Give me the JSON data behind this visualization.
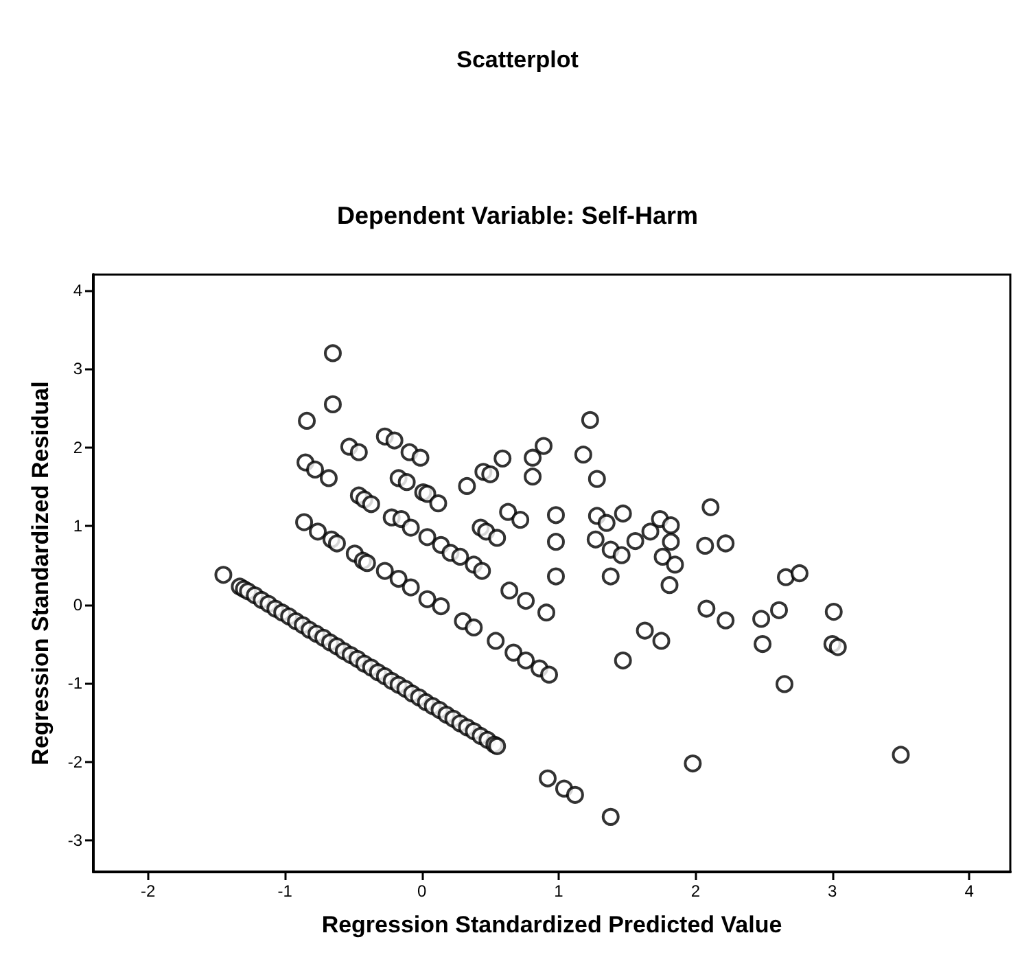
{
  "chart_data": {
    "type": "scatter",
    "title": "Scatterplot",
    "subtitle": "Dependent Variable: Self-Harm",
    "xlabel": "Regression Standardized Predicted Value",
    "ylabel": "Regression Standardized Residual",
    "xlim": [
      -2.4,
      4.3
    ],
    "xticks": [
      -2,
      -1,
      0,
      1,
      2,
      3,
      4
    ],
    "ylim": [
      -3.4,
      4.2
    ],
    "yticks": [
      -3,
      -2,
      -1,
      0,
      1,
      2,
      3,
      4
    ],
    "grid": false,
    "legend": false,
    "marker": "circle",
    "series": [
      {
        "color": "#000000",
        "x": [
          -1.45,
          -1.33,
          -1.3,
          -1.27,
          -1.22,
          -1.17,
          -1.12,
          -1.07,
          -1.02,
          -0.97,
          -0.92,
          -0.87,
          -0.82,
          -0.77,
          -0.72,
          -0.67,
          -0.62,
          -0.57,
          -0.52,
          -0.47,
          -0.42,
          -0.37,
          -0.32,
          -0.27,
          -0.22,
          -0.17,
          -0.12,
          -0.07,
          -0.02,
          0.03,
          0.08,
          0.13,
          0.18,
          0.23,
          0.28,
          0.33,
          0.38,
          0.43,
          0.48,
          0.53,
          0.55,
          -0.86,
          -0.76,
          -0.66,
          -0.62,
          -0.49,
          -0.43,
          -0.4,
          -0.27,
          -0.17,
          -0.08,
          0.04,
          0.14,
          0.3,
          0.38,
          0.54,
          0.67,
          0.76,
          0.86,
          0.93,
          -0.85,
          -0.78,
          -0.68,
          -0.46,
          -0.42,
          -0.37,
          -0.22,
          -0.15,
          -0.08,
          0.04,
          0.14,
          0.21,
          0.28,
          0.38,
          0.44,
          0.64,
          0.76,
          0.91,
          0.98,
          -0.27,
          -0.2,
          -0.09,
          -0.01,
          -0.17,
          -0.11,
          0.01,
          0.04,
          0.12,
          0.33,
          0.45,
          0.5,
          0.59,
          0.43,
          0.47,
          0.55,
          0.63,
          0.72,
          0.81,
          0.81,
          0.89,
          0.98,
          0.98,
          1.23,
          1.18,
          1.28,
          1.28,
          1.35,
          1.47,
          1.27,
          1.38,
          1.46,
          1.56,
          1.67,
          1.74,
          1.82,
          1.82,
          1.76,
          1.85,
          2.11,
          2.07,
          2.22,
          2.66,
          2.76,
          1.38,
          1.81,
          1.47,
          1.63,
          1.75,
          2.08,
          2.22,
          2.48,
          2.61,
          2.49,
          2.65,
          0.92,
          1.04,
          1.12,
          1.38,
          1.98,
          3.01,
          3.0,
          3.04,
          3.5,
          -0.65,
          -0.65,
          -0.84,
          -0.53,
          -0.46
        ],
        "values": [
          0.38,
          0.23,
          0.2,
          0.17,
          0.12,
          0.06,
          0.01,
          -0.05,
          -0.1,
          -0.15,
          -0.21,
          -0.26,
          -0.32,
          -0.37,
          -0.42,
          -0.48,
          -0.53,
          -0.59,
          -0.64,
          -0.69,
          -0.75,
          -0.8,
          -0.86,
          -0.91,
          -0.97,
          -1.02,
          -1.07,
          -1.13,
          -1.18,
          -1.24,
          -1.29,
          -1.34,
          -1.4,
          -1.45,
          -1.51,
          -1.56,
          -1.61,
          -1.67,
          -1.72,
          -1.78,
          -1.8,
          1.05,
          0.93,
          0.83,
          0.78,
          0.65,
          0.56,
          0.53,
          0.43,
          0.33,
          0.22,
          0.07,
          -0.02,
          -0.21,
          -0.29,
          -0.46,
          -0.61,
          -0.71,
          -0.81,
          -0.89,
          1.81,
          1.72,
          1.61,
          1.39,
          1.34,
          1.28,
          1.11,
          1.09,
          0.98,
          0.86,
          0.76,
          0.66,
          0.61,
          0.51,
          0.43,
          0.18,
          0.05,
          -0.1,
          0.36,
          2.14,
          2.09,
          1.94,
          1.87,
          1.61,
          1.56,
          1.43,
          1.41,
          1.29,
          1.51,
          1.69,
          1.66,
          1.86,
          0.98,
          0.93,
          0.85,
          1.18,
          1.08,
          1.63,
          1.87,
          2.02,
          1.14,
          0.8,
          2.35,
          1.91,
          1.6,
          1.13,
          1.04,
          1.16,
          0.83,
          0.7,
          0.63,
          0.81,
          0.93,
          1.09,
          1.01,
          0.8,
          0.61,
          0.51,
          1.24,
          0.75,
          0.78,
          0.35,
          0.4,
          0.36,
          0.25,
          -0.71,
          -0.33,
          -0.46,
          -0.05,
          -0.2,
          -0.18,
          -0.07,
          -0.5,
          -1.01,
          -2.21,
          -2.34,
          -2.42,
          -2.7,
          -2.02,
          -0.09,
          -0.5,
          -0.54,
          -1.91,
          3.2,
          2.55,
          2.34,
          2.01,
          1.94
        ]
      }
    ]
  }
}
